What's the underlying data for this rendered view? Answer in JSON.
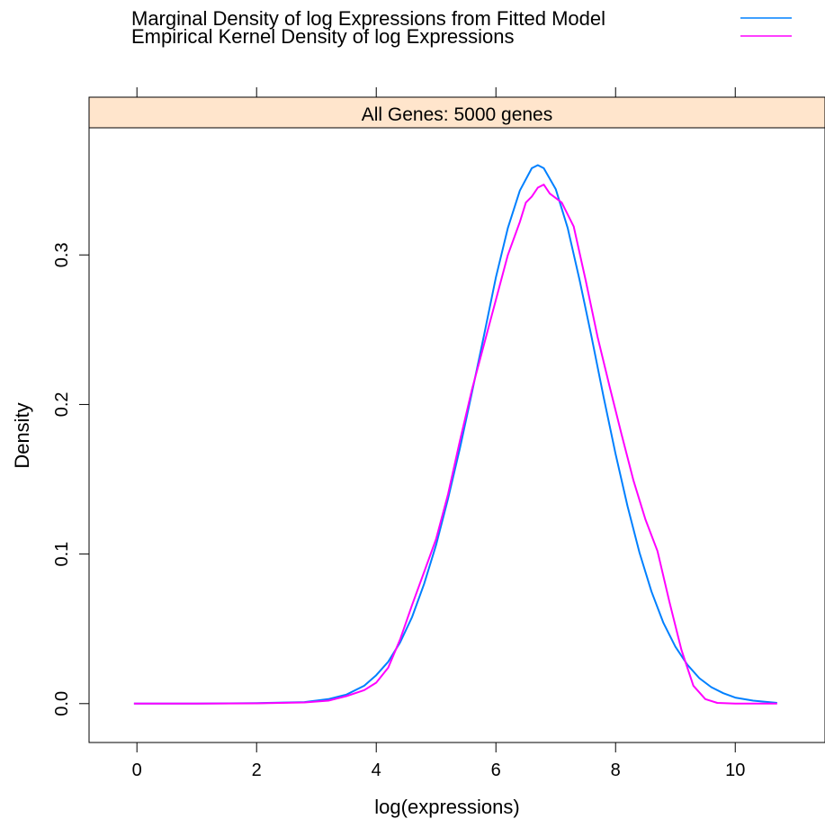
{
  "chart_data": {
    "type": "line",
    "panel_title": "All Genes: 5000 genes",
    "xlabel": "log(expressions)",
    "ylabel": "Density",
    "xlim": [
      -0.8,
      11.5
    ],
    "ylim": [
      -0.026,
      0.385
    ],
    "x_ticks": [
      0,
      2,
      4,
      6,
      8,
      10
    ],
    "x_tick_labels": [
      "0",
      "2",
      "4",
      "6",
      "8",
      "10"
    ],
    "y_ticks": [
      0.0,
      0.1,
      0.2,
      0.3
    ],
    "y_tick_labels": [
      "0.0",
      "0.1",
      "0.2",
      "0.3"
    ],
    "grid": false,
    "legend_position": "top",
    "strip_color": "#ffe5cc",
    "series": [
      {
        "name": "Marginal Density of log Expressions from Fitted Model",
        "color": "#0080ff",
        "x": [
          -0.05,
          1.0,
          2.0,
          2.8,
          3.2,
          3.5,
          3.8,
          4.0,
          4.2,
          4.4,
          4.6,
          4.8,
          5.0,
          5.2,
          5.4,
          5.6,
          5.8,
          6.0,
          6.2,
          6.4,
          6.6,
          6.7,
          6.8,
          7.0,
          7.2,
          7.4,
          7.6,
          7.8,
          8.0,
          8.2,
          8.4,
          8.6,
          8.8,
          9.0,
          9.2,
          9.4,
          9.6,
          9.8,
          10.0,
          10.3,
          10.7
        ],
        "y": [
          0.0,
          0.0,
          0.0003,
          0.001,
          0.003,
          0.006,
          0.012,
          0.019,
          0.028,
          0.041,
          0.058,
          0.08,
          0.106,
          0.137,
          0.171,
          0.208,
          0.246,
          0.285,
          0.318,
          0.343,
          0.358,
          0.36,
          0.358,
          0.344,
          0.318,
          0.283,
          0.245,
          0.205,
          0.167,
          0.132,
          0.101,
          0.075,
          0.054,
          0.038,
          0.026,
          0.017,
          0.011,
          0.007,
          0.004,
          0.002,
          0.0005
        ]
      },
      {
        "name": "Empirical Kernel Density of log Expressions",
        "color": "#ff00ff",
        "x": [
          -0.05,
          1.0,
          2.0,
          2.8,
          3.2,
          3.5,
          3.8,
          4.0,
          4.2,
          4.4,
          4.6,
          4.8,
          5.0,
          5.2,
          5.4,
          5.6,
          5.8,
          6.0,
          6.2,
          6.4,
          6.5,
          6.6,
          6.7,
          6.8,
          6.9,
          7.1,
          7.3,
          7.5,
          7.7,
          7.9,
          8.1,
          8.3,
          8.5,
          8.7,
          8.9,
          9.1,
          9.3,
          9.5,
          9.7,
          10.0,
          10.7
        ],
        "y": [
          0.0,
          0.0,
          0.0002,
          0.0008,
          0.002,
          0.005,
          0.009,
          0.014,
          0.024,
          0.043,
          0.066,
          0.088,
          0.11,
          0.14,
          0.176,
          0.21,
          0.24,
          0.27,
          0.3,
          0.322,
          0.335,
          0.339,
          0.345,
          0.347,
          0.341,
          0.335,
          0.319,
          0.283,
          0.245,
          0.212,
          0.18,
          0.149,
          0.123,
          0.102,
          0.068,
          0.036,
          0.012,
          0.003,
          0.0005,
          0.0,
          0.0
        ]
      }
    ]
  }
}
